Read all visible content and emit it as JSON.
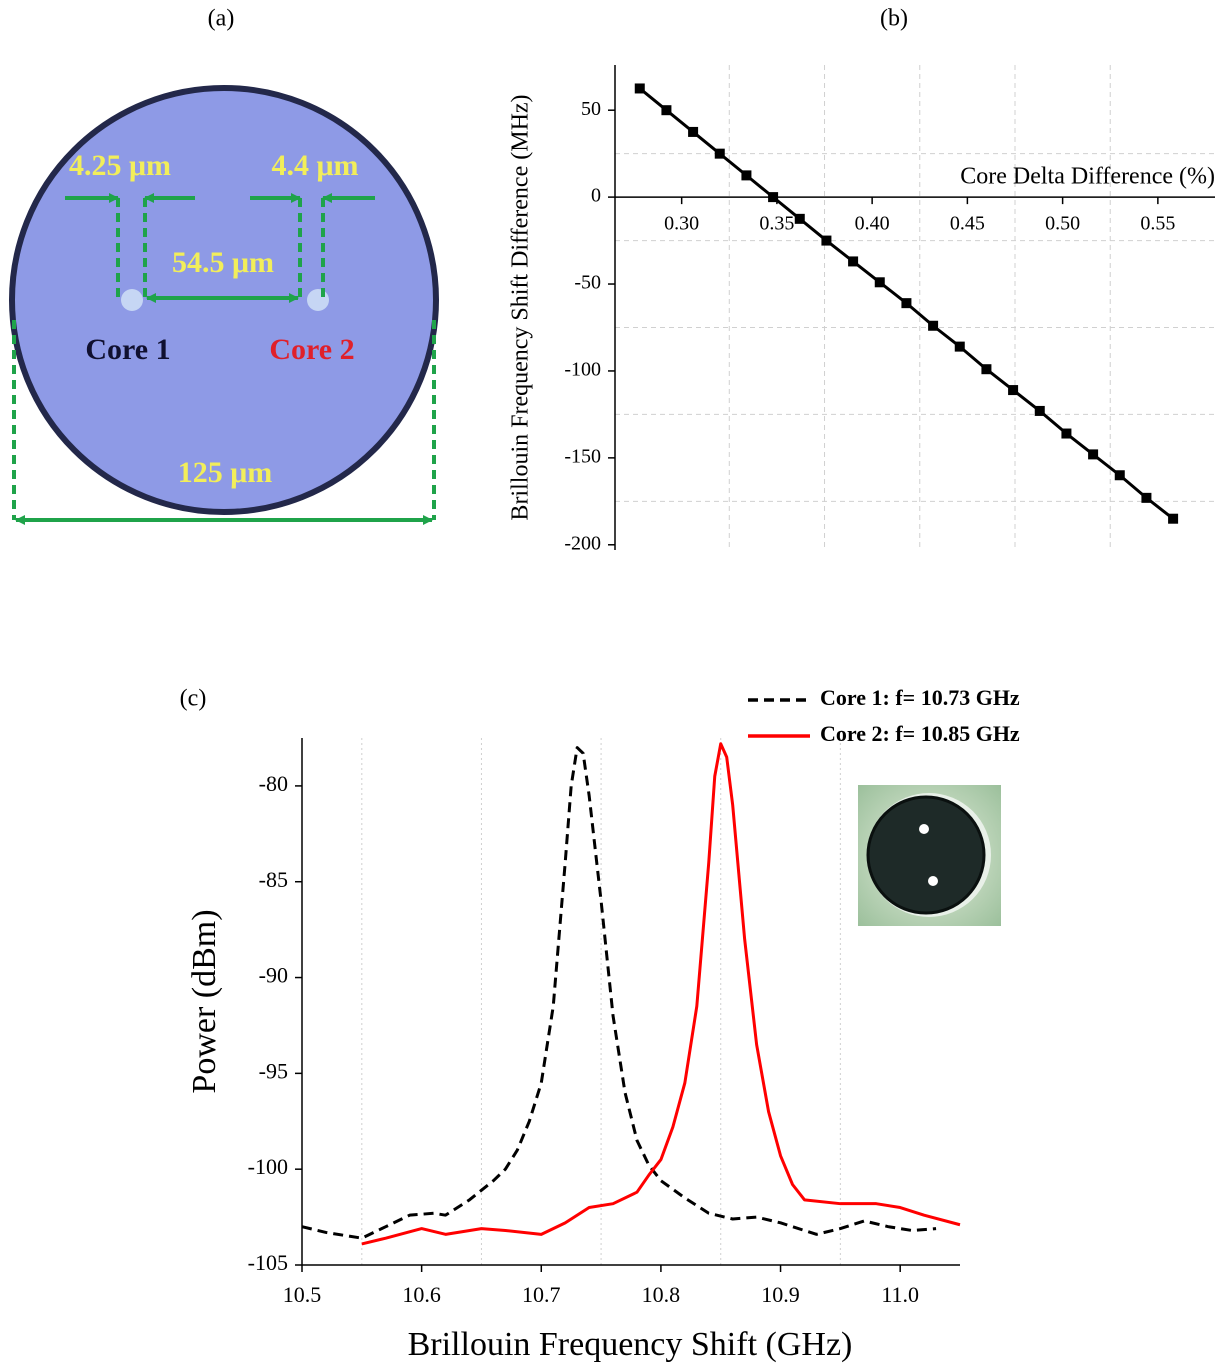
{
  "photo": {
    "panel_label": "(a)",
    "labels": {
      "core1_width": "4.25 μm",
      "core2_width": "4.4 μm",
      "core_pitch": "54.5 μm",
      "core1": "Core 1",
      "core2": "Core 2",
      "cladding": "125 μm"
    }
  },
  "chart_data": [
    {
      "type": "line",
      "panel_label": "(b)",
      "xlabel": "Core Delta Difference (%)",
      "ylabel": "Brillouin Frequency Shift Difference (MHz)",
      "x": [
        0.278,
        0.292,
        0.306,
        0.32,
        0.334,
        0.348,
        0.362,
        0.376,
        0.39,
        0.404,
        0.418,
        0.432,
        0.446,
        0.46,
        0.474,
        0.488,
        0.502,
        0.516,
        0.53,
        0.544,
        0.558
      ],
      "series": [
        {
          "color": "#000000",
          "marker": "square",
          "values": [
            62.5,
            50,
            37.5,
            25,
            12.5,
            0,
            -12.5,
            -25,
            -37,
            -49,
            -61,
            -74,
            -86,
            -99,
            -111,
            -123,
            -136,
            -148,
            -160,
            -173,
            -185
          ]
        }
      ],
      "xlim": [
        0.265,
        0.58
      ],
      "ylim": [
        -203,
        76
      ],
      "xticks": [
        {
          "value": 0.3,
          "label": "0.30"
        },
        0.35,
        {
          "value": 0.4,
          "label": "0.40"
        },
        0.45,
        {
          "value": 0.5,
          "label": "0.50"
        },
        0.55
      ],
      "yticks": [
        50,
        0,
        -50,
        -100,
        -150,
        -200
      ],
      "grid": true
    },
    {
      "type": "line",
      "panel_label": "(c)",
      "xlabel": "Brillouin Frequency Shift (GHz)",
      "ylabel": "Power (dBm)",
      "series": [
        {
          "name": "Core 1: f= 10.73 GHz",
          "color": "#000000",
          "dash": true,
          "x": [
            10.5,
            10.52,
            10.55,
            10.57,
            10.59,
            10.61,
            10.62,
            10.64,
            10.66,
            10.67,
            10.68,
            10.69,
            10.7,
            10.71,
            10.72,
            10.725,
            10.73,
            10.735,
            10.74,
            10.75,
            10.76,
            10.77,
            10.78,
            10.79,
            10.8,
            10.82,
            10.84,
            10.86,
            10.88,
            10.9,
            10.93,
            10.95,
            10.97,
            10.99,
            11.01,
            11.03
          ],
          "values": [
            -103.0,
            -103.3,
            -103.6,
            -103.0,
            -102.4,
            -102.3,
            -102.4,
            -101.6,
            -100.6,
            -100.0,
            -99.0,
            -97.5,
            -95.5,
            -91.5,
            -84,
            -80,
            -78,
            -78.3,
            -80.5,
            -86,
            -92,
            -96,
            -98.5,
            -99.8,
            -100.6,
            -101.5,
            -102.3,
            -102.6,
            -102.5,
            -102.8,
            -103.4,
            -103.1,
            -102.7,
            -103.0,
            -103.2,
            -103.1
          ]
        },
        {
          "name": "Core 2: f= 10.85 GHz",
          "color": "#ff0000",
          "dash": false,
          "x": [
            10.55,
            10.57,
            10.6,
            10.62,
            10.65,
            10.67,
            10.7,
            10.72,
            10.74,
            10.76,
            10.78,
            10.79,
            10.8,
            10.81,
            10.82,
            10.83,
            10.84,
            10.845,
            10.85,
            10.855,
            10.86,
            10.87,
            10.88,
            10.89,
            10.9,
            10.91,
            10.92,
            10.95,
            10.98,
            11.0,
            11.02,
            11.05
          ],
          "values": [
            -103.9,
            -103.6,
            -103.1,
            -103.4,
            -103.1,
            -103.2,
            -103.4,
            -102.8,
            -102.0,
            -101.8,
            -101.2,
            -100.3,
            -99.5,
            -97.8,
            -95.5,
            -91.5,
            -84,
            -79.5,
            -77.8,
            -78.5,
            -81,
            -88,
            -93.5,
            -97,
            -99.3,
            -100.8,
            -101.6,
            -101.8,
            -101.8,
            -102.0,
            -102.4,
            -102.9
          ]
        }
      ],
      "xlim": [
        10.5,
        11.05
      ],
      "ylim": [
        -105,
        -77.5
      ],
      "xticks": [
        10.5,
        10.6,
        10.7,
        10.8,
        10.9,
        {
          "value": 11.0,
          "label": "11.0"
        }
      ],
      "yticks": [
        -80,
        -85,
        -90,
        -95,
        -100,
        -105
      ],
      "grid": true
    }
  ]
}
